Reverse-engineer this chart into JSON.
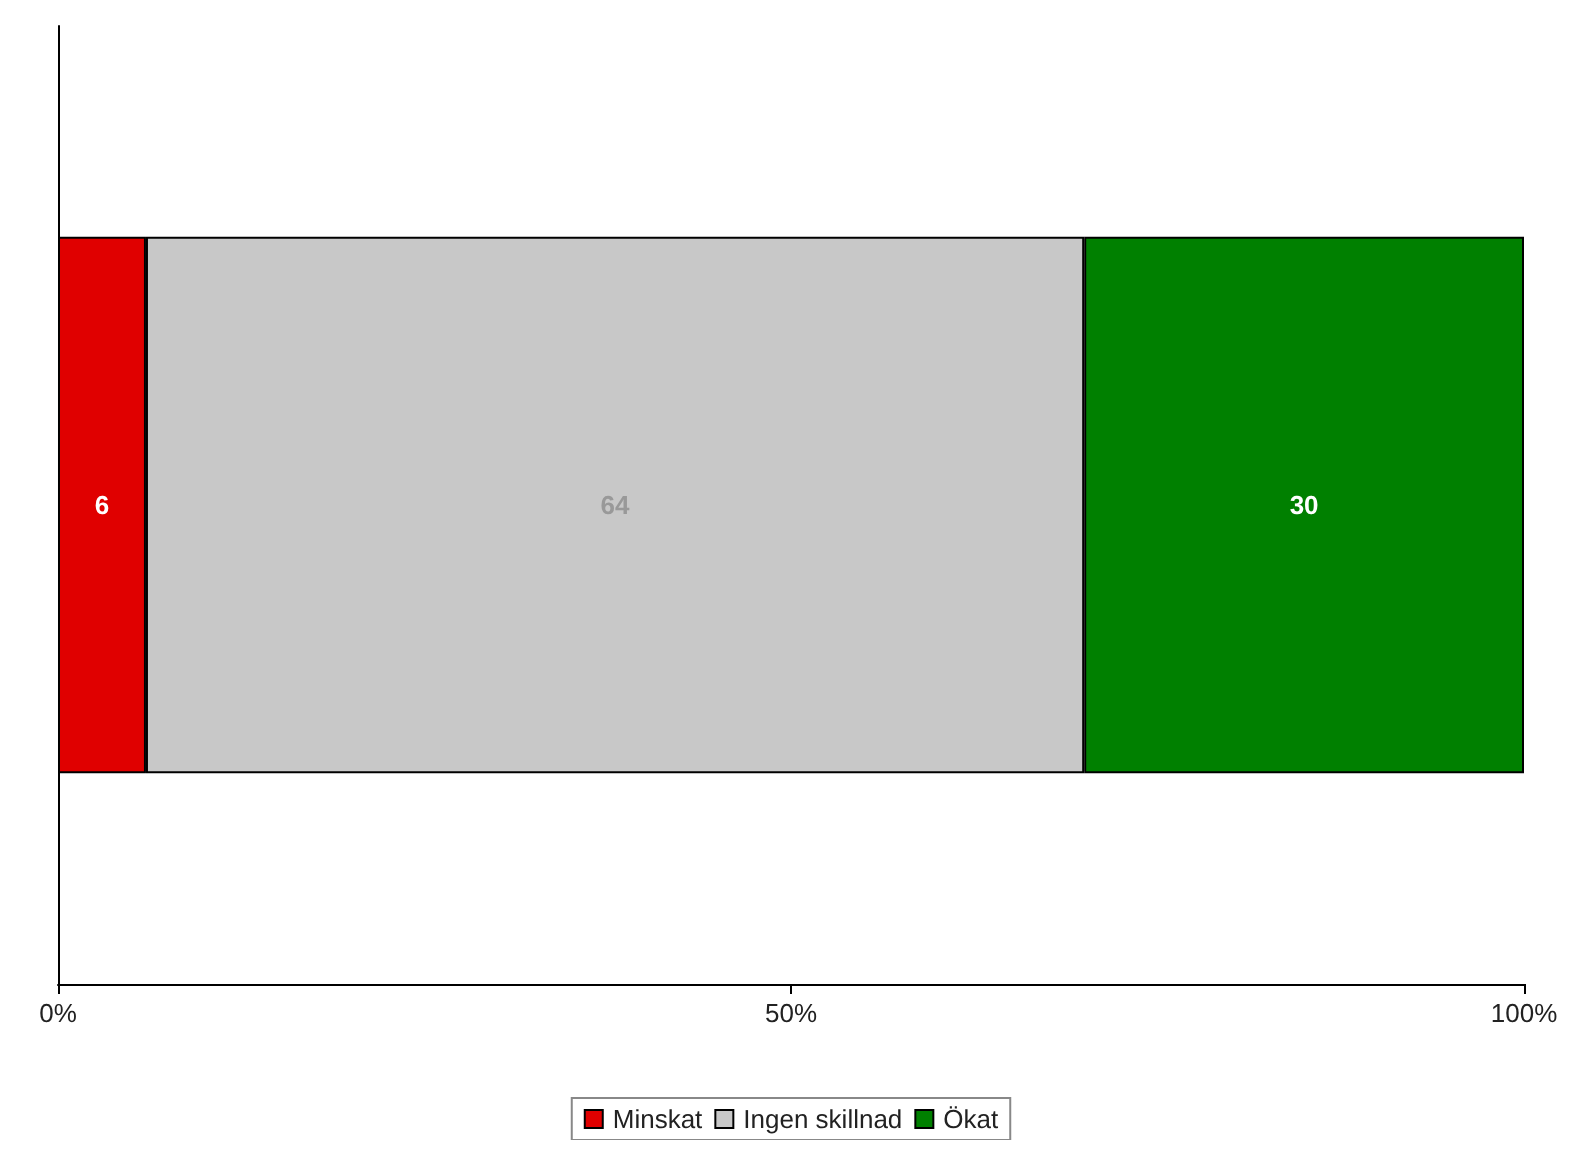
{
  "chart_data": {
    "type": "bar",
    "orientation": "horizontal",
    "stacked": true,
    "categories": [
      null
    ],
    "series": [
      {
        "name": "Minskat",
        "color": "#e00000",
        "values": [
          6
        ]
      },
      {
        "name": "Ingen skillnad",
        "color": "#c8c8c8",
        "values": [
          64
        ]
      },
      {
        "name": "Ökat",
        "color": "#008000",
        "values": [
          30
        ]
      }
    ],
    "xlim": [
      0,
      100
    ],
    "xticks": [
      {
        "value": 0,
        "label": "0%"
      },
      {
        "value": 50,
        "label": "50%"
      },
      {
        "value": 100,
        "label": "100%"
      }
    ],
    "data_labels": true,
    "grid": false,
    "legend": "bottom"
  }
}
